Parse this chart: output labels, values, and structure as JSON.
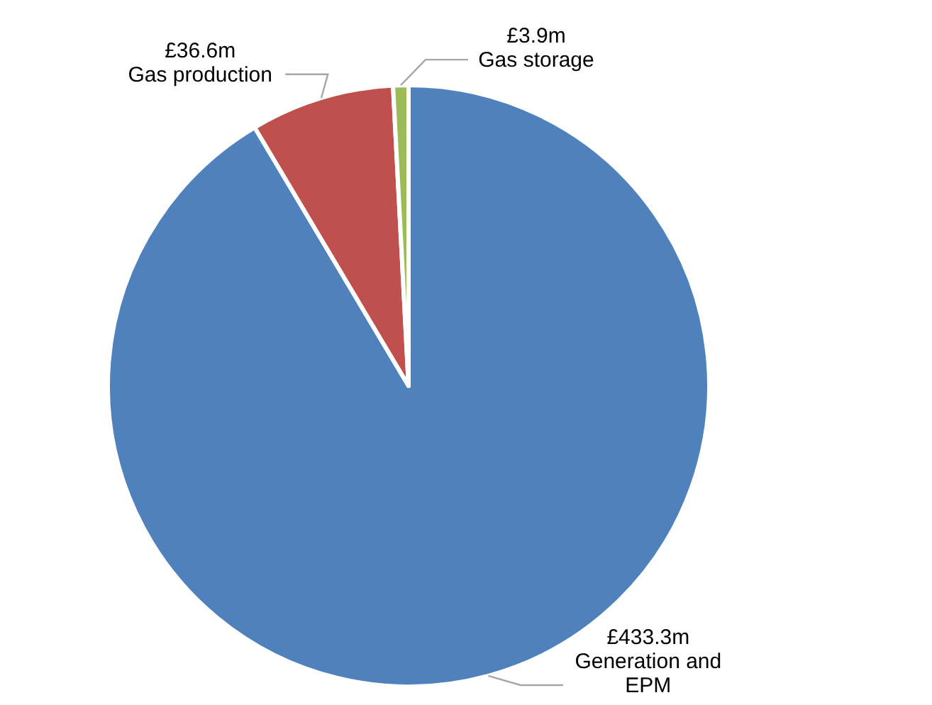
{
  "chart_data": {
    "type": "pie",
    "categories": [
      "Generation and EPM",
      "Gas production",
      "Gas storage"
    ],
    "values": [
      433.3,
      36.6,
      3.9
    ],
    "value_labels": [
      "£433.3m",
      "£36.6m",
      "£3.9m"
    ],
    "colors": [
      "#4f81bd",
      "#c0504d",
      "#9bbb59"
    ]
  }
}
